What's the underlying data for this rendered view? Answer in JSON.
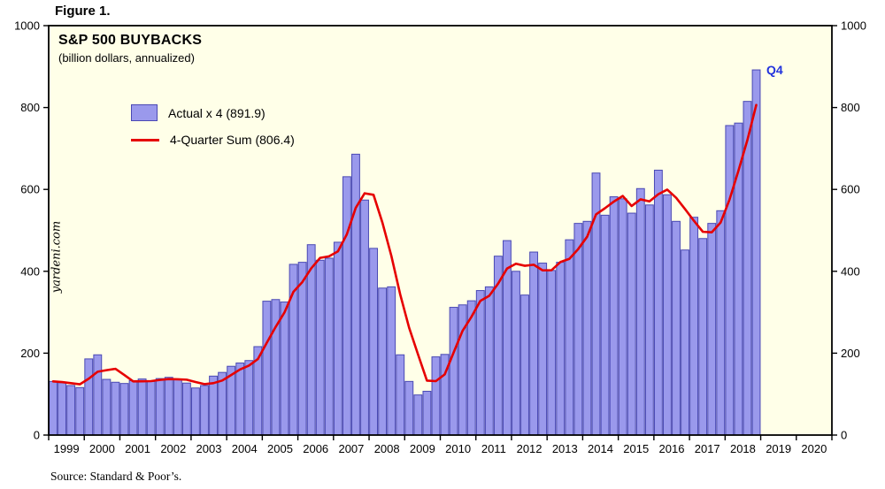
{
  "chart_data": {
    "type": "bar",
    "figure_label": "Figure 1.",
    "title": "S&P 500 BUYBACKS",
    "subtitle": "(billion dollars, annualized)",
    "watermark": "yardeni.com",
    "source": "Source: Standard & Poor’s.",
    "annotation": "Q4",
    "plot_background": "#FFFFE8",
    "ylim": [
      0,
      1000
    ],
    "yticks": [
      0,
      200,
      400,
      600,
      800,
      1000
    ],
    "x_years": [
      "1999",
      "2000",
      "2001",
      "2002",
      "2003",
      "2004",
      "2005",
      "2006",
      "2007",
      "2008",
      "2009",
      "2010",
      "2011",
      "2012",
      "2013",
      "2014",
      "2015",
      "2016",
      "2017",
      "2018",
      "2019",
      "2020"
    ],
    "quarters_per_year": 4,
    "bar_series": {
      "name": "Actual x 4 (891.9)",
      "last_value": 891.9,
      "color": "#9A99EC",
      "border_color": "#4A49B4",
      "values": [
        131,
        128,
        121,
        116,
        186,
        196,
        136,
        129,
        126,
        133,
        137,
        131,
        138,
        141,
        135,
        127,
        115,
        121,
        144,
        153,
        168,
        176,
        182,
        216,
        327,
        331,
        325,
        417,
        422,
        465,
        427,
        432,
        471,
        631,
        686,
        574,
        456,
        359,
        362,
        196,
        131,
        98,
        107,
        191,
        197,
        312,
        318,
        328,
        353,
        362,
        437,
        475,
        400,
        342,
        447,
        420,
        402,
        422,
        477,
        517,
        522,
        640,
        537,
        582,
        577,
        542,
        602,
        562,
        647,
        587,
        522,
        452,
        532,
        480,
        517,
        548,
        756,
        762,
        815,
        891.9
      ]
    },
    "line_series": {
      "name": "4-Quarter Sum (806.4)",
      "last_value": 806.4,
      "color": "#E60000",
      "derivation": "trailing 4-quarter mean of annualized bar values"
    }
  }
}
